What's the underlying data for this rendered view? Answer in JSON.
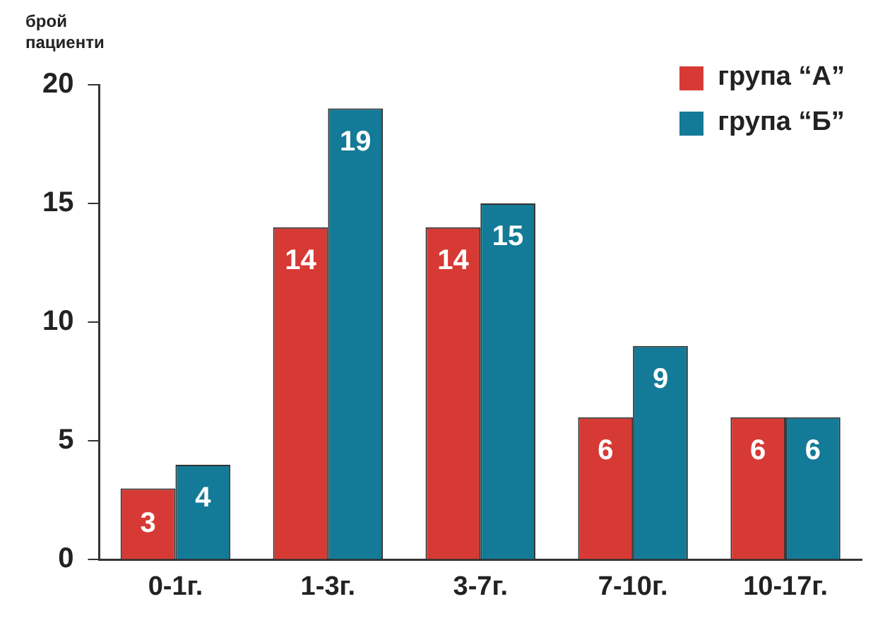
{
  "chart_data": {
    "type": "bar",
    "ylabel": "брой пациенти",
    "categories": [
      "0-1г.",
      "1-3г.",
      "3-7г.",
      "7-10г.",
      "10-17г."
    ],
    "series": [
      {
        "name": "група “А”",
        "color": "#d73a35",
        "values": [
          3,
          14,
          14,
          6,
          6
        ]
      },
      {
        "name": "група “Б”",
        "color": "#137a97",
        "values": [
          4,
          19,
          15,
          9,
          6
        ]
      }
    ],
    "ylim": [
      0,
      20
    ],
    "yticks": [
      0,
      5,
      10,
      15,
      20
    ],
    "grid": false,
    "legend": "top right",
    "data_labels": true
  }
}
